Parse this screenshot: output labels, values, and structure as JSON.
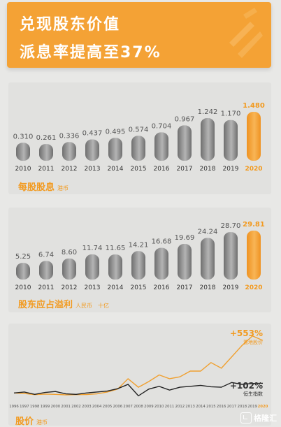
{
  "headline": {
    "line1": "兑现股东价值",
    "line2": "派息率提高至37%"
  },
  "colors": {
    "accent": "#f29a1f",
    "highlight_bar": "#f4a235",
    "bar": "#8a8a8a"
  },
  "watermark": {
    "text": "格隆汇",
    "icon": "gelonghui-logo-icon"
  },
  "captions": {
    "dividend": {
      "title": "每股股息",
      "unit": "港币"
    },
    "profit": {
      "title": "股东应占溢利",
      "unit": "人民币　十亿"
    },
    "price": {
      "title": "股价",
      "unit": "港币"
    }
  },
  "chart_data": [
    {
      "type": "bar",
      "categories": [
        "2010",
        "2011",
        "2012",
        "2013",
        "2014",
        "2015",
        "2016",
        "2017",
        "2018",
        "2019",
        "2020"
      ],
      "values": [
        0.31,
        0.261,
        0.336,
        0.437,
        0.495,
        0.574,
        0.704,
        0.967,
        1.242,
        1.17,
        1.48
      ],
      "value_labels": [
        "0.310",
        "0.261",
        "0.336",
        "0.437",
        "0.495",
        "0.574",
        "0.704",
        "0.967",
        "1.242",
        "1.170",
        "1.480"
      ],
      "highlight": "2020",
      "title": "每股股息",
      "unit": "港币"
    },
    {
      "type": "bar",
      "categories": [
        "2010",
        "2011",
        "2012",
        "2013",
        "2014",
        "2015",
        "2016",
        "2017",
        "2018",
        "2019",
        "2020"
      ],
      "values": [
        5.25,
        6.74,
        8.6,
        11.74,
        11.65,
        14.21,
        16.68,
        19.69,
        24.24,
        28.7,
        29.81
      ],
      "value_labels": [
        "5.25",
        "6.74",
        "8.60",
        "11.74",
        "11.65",
        "14.21",
        "16.68",
        "19.69",
        "24.24",
        "28.70",
        "29.81"
      ],
      "highlight": "2020",
      "title": "股东应占溢利",
      "unit": "人民币　十亿"
    },
    {
      "type": "line",
      "x": [
        "1996",
        "1997",
        "1998",
        "1999",
        "2000",
        "2001",
        "2002",
        "2003",
        "2004",
        "2005",
        "2006",
        "2007",
        "2008",
        "2009",
        "2010",
        "2011",
        "2012",
        "2013",
        "2014",
        "2015",
        "2016",
        "2017",
        "2018",
        "2019",
        "2020"
      ],
      "ylim": [
        -20,
        620
      ],
      "series": [
        {
          "name": "置地股价",
          "annotation": "+553%",
          "color": "#f0a030",
          "values": [
            0,
            -5,
            -18,
            -12,
            -15,
            -20,
            -18,
            -16,
            -10,
            10,
            40,
            150,
            60,
            120,
            190,
            150,
            170,
            230,
            230,
            320,
            260,
            380,
            500,
            600,
            553
          ]
        },
        {
          "name": "恒生指数",
          "annotation": "+102%",
          "color": "#222222",
          "values": [
            0,
            10,
            -15,
            5,
            15,
            -10,
            -15,
            0,
            10,
            20,
            45,
            90,
            -30,
            40,
            70,
            30,
            60,
            70,
            80,
            65,
            60,
            110,
            90,
            100,
            102
          ]
        }
      ]
    }
  ]
}
